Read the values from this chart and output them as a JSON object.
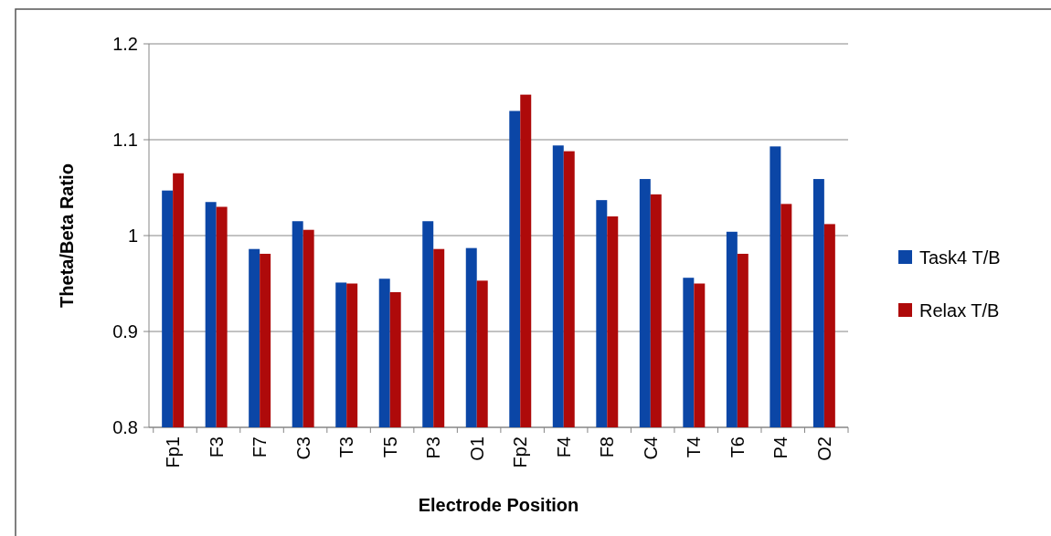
{
  "chart_data": {
    "type": "bar",
    "xlabel": "Electrode Position",
    "ylabel": "Theta/Beta Ratio",
    "categories": [
      "Fp1",
      "F3",
      "F7",
      "C3",
      "T3",
      "T5",
      "P3",
      "O1",
      "Fp2",
      "F4",
      "F8",
      "C4",
      "T4",
      "T6",
      "P4",
      "O2"
    ],
    "series": [
      {
        "name": "Task4 T/B",
        "color": "#0b46a6",
        "values": [
          1.047,
          1.035,
          0.986,
          1.015,
          0.951,
          0.955,
          1.015,
          0.987,
          1.13,
          1.094,
          1.037,
          1.059,
          0.956,
          1.004,
          1.093,
          1.059
        ]
      },
      {
        "name": "Relax T/B",
        "color": "#ae0a0a",
        "values": [
          1.065,
          1.03,
          0.981,
          1.006,
          0.95,
          0.941,
          0.986,
          0.953,
          1.147,
          1.088,
          1.02,
          1.043,
          0.95,
          0.981,
          1.033,
          1.012
        ]
      }
    ],
    "ylim": [
      0.8,
      1.2
    ],
    "yticks": [
      {
        "value": 0.8,
        "label": "0.8"
      },
      {
        "value": 0.9,
        "label": "0.9"
      },
      {
        "value": 1,
        "label": "1"
      },
      {
        "value": 1.1,
        "label": "1.1"
      },
      {
        "value": 1.2,
        "label": "1.2"
      }
    ],
    "grid": "y",
    "legend": "right"
  }
}
